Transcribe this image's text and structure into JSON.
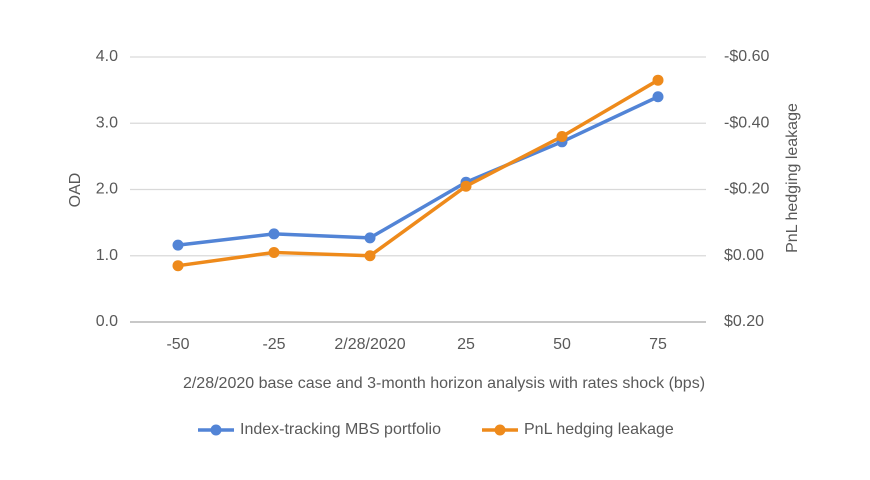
{
  "chart_data": {
    "type": "line",
    "categories": [
      "-50",
      "-25",
      "2/28/2020",
      "25",
      "50",
      "75"
    ],
    "x_label": "2/28/2020 base case and 3-month horizon analysis with rates shock (bps)",
    "y_label": "OAD",
    "y2_label": "PnL hedging leakage",
    "ylim": [
      0,
      4
    ],
    "yticks": [
      {
        "value": 0,
        "label": "0.0"
      },
      {
        "value": 1,
        "label": "1.0"
      },
      {
        "value": 2,
        "label": "2.0"
      },
      {
        "value": 3,
        "label": "3.0"
      },
      {
        "value": 4,
        "label": "4.0"
      }
    ],
    "y2lim": [
      0.2,
      -0.6
    ],
    "y2ticks": [
      {
        "value": 0.2,
        "label": "$0.20"
      },
      {
        "value": 0,
        "label": "$0.00"
      },
      {
        "value": -0.2,
        "label": "-$0.20"
      },
      {
        "value": -0.4,
        "label": "-$0.40"
      },
      {
        "value": -0.6,
        "label": "-$0.60"
      }
    ],
    "grid": true,
    "legend": "bottom",
    "series": [
      {
        "name": "Index-tracking MBS portfolio",
        "color": "#5284d6",
        "values": [
          1.16,
          1.33,
          1.27,
          2.11,
          2.72,
          3.4
        ]
      },
      {
        "name": "PnL hedging leakage",
        "color": "#ee8a1b",
        "axis": "y2",
        "values": [
          0.03,
          -0.01,
          0.0,
          -0.21,
          -0.36,
          -0.53
        ]
      }
    ]
  }
}
